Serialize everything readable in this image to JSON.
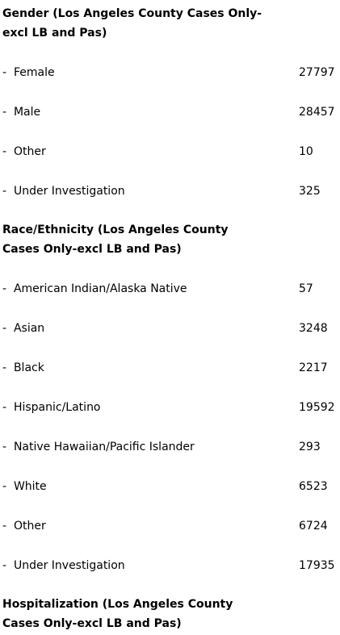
{
  "sections": [
    {
      "title": [
        "Gender (Los Angeles County Cases Only-",
        "excl LB and Pas)"
      ],
      "rows": [
        {
          "label": "-  Female",
          "value": 27797
        },
        {
          "label": "-  Male",
          "value": 28457
        },
        {
          "label": "-  Other",
          "value": 10
        },
        {
          "label": "-  Under Investigation",
          "value": 325
        }
      ]
    },
    {
      "title": [
        "Race/Ethnicity (Los Angeles County",
        "Cases Only-excl LB and Pas)"
      ],
      "rows": [
        {
          "label": "-  American Indian/Alaska Native",
          "value": 57
        },
        {
          "label": "-  Asian",
          "value": 3248
        },
        {
          "label": "-  Black",
          "value": 2217
        },
        {
          "label": "-  Hispanic/Latino",
          "value": 19592
        },
        {
          "label": "-  Native Hawaiian/Pacific Islander",
          "value": 293
        },
        {
          "label": "-  White",
          "value": 6523
        },
        {
          "label": "-  Other",
          "value": 6724
        },
        {
          "label": "-  Under Investigation",
          "value": 17935
        }
      ]
    },
    {
      "title": [
        "Hospitalization (Los Angeles County",
        "Cases Only-excl LB and Pas)"
      ],
      "rows": []
    }
  ]
}
